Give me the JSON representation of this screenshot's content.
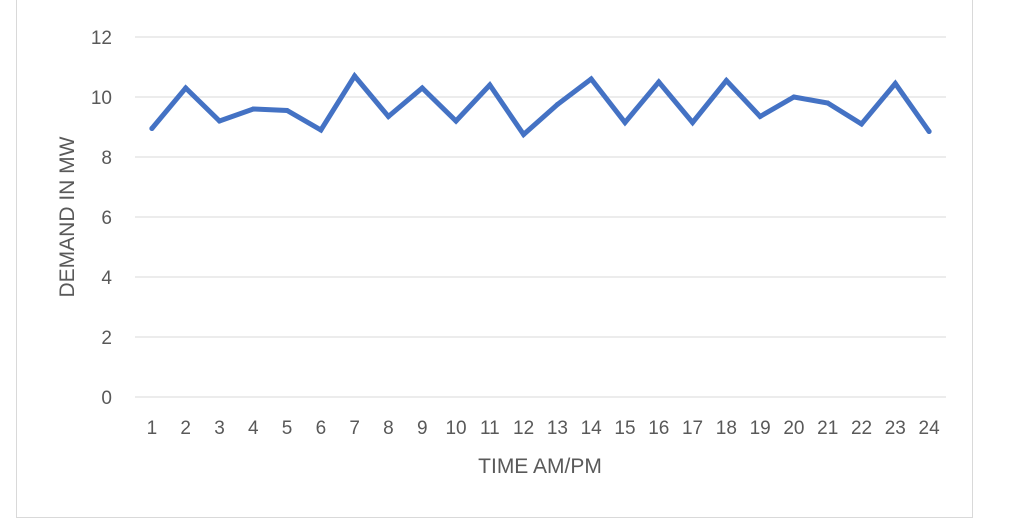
{
  "chart_data": {
    "type": "line",
    "title": "",
    "xlabel": "TIME AM/PM",
    "ylabel": "DEMAND IN MW",
    "ylim": [
      0,
      12
    ],
    "yticks": [
      0,
      2,
      4,
      6,
      8,
      10,
      12
    ],
    "grid": true,
    "legend": "none",
    "categories": [
      "1",
      "2",
      "3",
      "4",
      "5",
      "6",
      "7",
      "8",
      "9",
      "10",
      "11",
      "12",
      "13",
      "14",
      "15",
      "16",
      "17",
      "18",
      "19",
      "20",
      "21",
      "22",
      "23",
      "24"
    ],
    "series": [
      {
        "color": "#4472c4",
        "values": [
          8.95,
          10.3,
          9.2,
          9.6,
          9.55,
          8.9,
          10.7,
          9.35,
          10.3,
          9.2,
          10.4,
          8.75,
          9.75,
          10.6,
          9.15,
          10.5,
          9.15,
          10.55,
          9.35,
          10.0,
          9.8,
          9.1,
          10.45,
          8.85
        ]
      }
    ]
  }
}
